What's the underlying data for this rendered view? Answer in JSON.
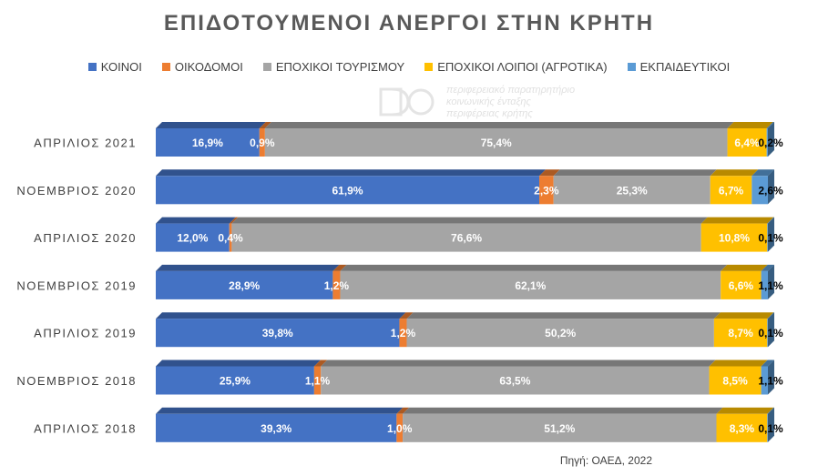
{
  "chart_data": {
    "type": "bar",
    "orientation": "horizontal",
    "stacked": true,
    "percent_stacked": true,
    "title": "ΕΠΙΔΟΤΟΥΜΕΝΟΙ ΑΝΕΡΓΟΙ ΣΤΗΝ ΚΡΗΤΗ",
    "categories": [
      "ΑΠΡΙΛΙΟΣ 2021",
      "ΝΟΕΜΒΡΙΟΣ 2020",
      "ΑΠΡΙΛΙΟΣ 2020",
      "ΝΟΕΜΒΡΙΟΣ 2019",
      "ΑΠΡΙΛΙΟΣ 2019",
      "ΝΟΕΜΒΡΙΟΣ 2018",
      "ΑΠΡΙΛΙΟΣ 2018"
    ],
    "series": [
      {
        "name": "ΚΟΙΝΟΙ",
        "color": "#4472C4",
        "values": [
          16.9,
          61.9,
          12.0,
          28.9,
          39.8,
          25.9,
          39.3
        ],
        "labels": [
          "16,9%",
          "61,9%",
          "12,0%",
          "28,9%",
          "39,8%",
          "25,9%",
          "39,3%"
        ]
      },
      {
        "name": "ΟΙΚΟΔΟΜΟΙ",
        "color": "#ED7D31",
        "values": [
          0.9,
          2.3,
          0.4,
          1.2,
          1.2,
          1.1,
          1.0
        ],
        "labels": [
          "0,9%",
          "2,3%",
          "0,4%",
          "1,2%",
          "1,2%",
          "1,1%",
          "1,0%"
        ]
      },
      {
        "name": "ΕΠΟΧΙΚΟΙ ΤΟΥΡΙΣΜΟΥ",
        "color": "#A5A5A5",
        "values": [
          75.4,
          25.3,
          76.6,
          62.1,
          50.2,
          63.5,
          51.2
        ],
        "labels": [
          "75,4%",
          "25,3%",
          "76,6%",
          "62,1%",
          "50,2%",
          "63,5%",
          "51,2%"
        ]
      },
      {
        "name": "ΕΠΟΧΙΚΟΙ ΛΟΙΠΟΙ (ΑΓΡΟΤΙΚΑ)",
        "color": "#FFC000",
        "values": [
          6.4,
          6.7,
          10.8,
          6.6,
          8.7,
          8.5,
          8.3
        ],
        "labels": [
          "6,4%",
          "6,7%",
          "10,8%",
          "6,6%",
          "8,7%",
          "8,5%",
          "8,3%"
        ]
      },
      {
        "name": "ΕΚΠΑΙΔΕΥΤΙΚΟΙ",
        "color": "#5B9BD5",
        "values": [
          0.2,
          2.6,
          0.1,
          1.1,
          0.1,
          1.1,
          0.1
        ],
        "labels": [
          "0,2%",
          "2,6%",
          "0,1%",
          "1,1%",
          "0,1%",
          "1,1%",
          "0,1%"
        ]
      }
    ],
    "xlim": [
      0,
      100
    ],
    "grid": false,
    "legend_position": "top"
  },
  "watermark": {
    "line1": "περιφερειακό παρατηρητήριο",
    "line2": "κοινωνικής ένταξης",
    "line3": "περιφέρειας κρήτης"
  },
  "source": "Πηγή: ΟΑΕΔ, 2022"
}
